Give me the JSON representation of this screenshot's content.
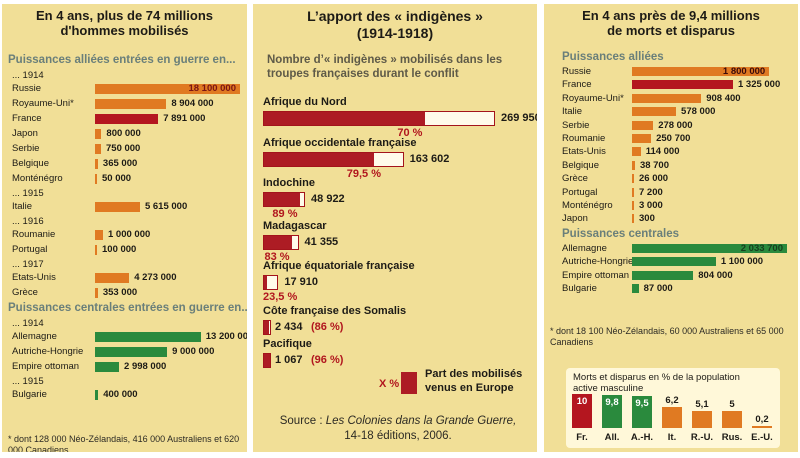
{
  "colors": {
    "panel_bg": "#f1df97",
    "orange": "#e07a22",
    "red": "#b4161f",
    "green": "#2a8a3d",
    "section_text": "#6a7f7a"
  },
  "panel1": {
    "title": [
      "En 4 ans, plus de 74 millions",
      "d'hommes mobilisés"
    ],
    "section_allied": "Puissances alliées entrées en guerre en...",
    "section_central": "Puissances centrales entrées en guerre en...",
    "footnote": "* dont 128 000 Néo-Zélandais, 416 000 Australiens et 620 000 Canadiens"
  },
  "panel2": {
    "title": [
      "L’apport des « indigènes »",
      "(1914-1918)"
    ],
    "subtitle": "Nombre d’« indigènes » mobilisés dans les troupes françaises durant le conflit",
    "legend_symbol": "X %",
    "legend_text": "Part des mobilisés venus en Europe",
    "source_prefix": "Source : ",
    "source_title": "Les Colonies dans la Grande Guerre,",
    "source_suffix": "14-18 éditions, 2006."
  },
  "panel3": {
    "title": [
      "En 4 ans près de 9,4 millions",
      "de morts et disparus"
    ],
    "section_allied": "Puissances alliées",
    "section_central": "Puissances centrales",
    "footnote": "* dont 18 100 Néo-Zélandais, 60 000 Australiens et 65 000 Canadiens",
    "inset_title": [
      "Morts et disparus en % de la population",
      "active masculine"
    ]
  },
  "chart_data": [
    {
      "type": "bar",
      "orientation": "horizontal",
      "title": "En 4 ans, plus de 74 millions d'hommes mobilisés",
      "groups": [
        {
          "label": "Puissances alliées entrées en guerre en...",
          "year": "... 1914",
          "color": "#e07a22",
          "items": [
            {
              "name": "Russie",
              "value": 18100000,
              "label": "18 100 000"
            },
            {
              "name": "Royaume-Uni*",
              "value": 8904000,
              "label": "8 904 000"
            },
            {
              "name": "France",
              "value": 7891000,
              "label": "7 891 000",
              "color": "#b4161f"
            },
            {
              "name": "Japon",
              "value": 800000,
              "label": "800 000"
            },
            {
              "name": "Serbie",
              "value": 750000,
              "label": "750 000"
            },
            {
              "name": "Belgique",
              "value": 365000,
              "label": "365 000"
            },
            {
              "name": "Monténégro",
              "value": 50000,
              "label": "50 000"
            }
          ]
        },
        {
          "year": "... 1915",
          "color": "#e07a22",
          "items": [
            {
              "name": "Italie",
              "value": 5615000,
              "label": "5 615 000"
            }
          ]
        },
        {
          "year": "... 1916",
          "color": "#e07a22",
          "items": [
            {
              "name": "Roumanie",
              "value": 1000000,
              "label": "1 000 000"
            },
            {
              "name": "Portugal",
              "value": 100000,
              "label": "100 000"
            }
          ]
        },
        {
          "year": "... 1917",
          "color": "#e07a22",
          "items": [
            {
              "name": "Etats-Unis",
              "value": 4273000,
              "label": "4 273 000"
            },
            {
              "name": "Grèce",
              "value": 353000,
              "label": "353 000"
            }
          ]
        },
        {
          "label": "Puissances centrales entrées en guerre en...",
          "year": "... 1914",
          "color": "#2a8a3d",
          "items": [
            {
              "name": "Allemagne",
              "value": 13200000,
              "label": "13 200 000"
            },
            {
              "name": "Autriche-Hongrie",
              "value": 9000000,
              "label": "9 000 000"
            },
            {
              "name": "Empire ottoman",
              "value": 2998000,
              "label": "2 998 000"
            }
          ]
        },
        {
          "year": "... 1915",
          "color": "#2a8a3d",
          "items": [
            {
              "name": "Bulgarie",
              "value": 400000,
              "label": "400 000"
            }
          ]
        }
      ]
    },
    {
      "type": "bar",
      "orientation": "horizontal",
      "title": "L’apport des « indigènes » (1914-1918)",
      "subtitle": "Nombre d’« indigènes » mobilisés dans les troupes françaises durant le conflit",
      "series": [
        {
          "name": "Nombre d’« indigènes » mobilisés",
          "values": [
            269950,
            163602,
            48922,
            41355,
            17910,
            2434,
            1067
          ]
        },
        {
          "name": "Part des mobilisés venus en Europe",
          "values": [
            70,
            79.5,
            89,
            83,
            23.5,
            86,
            96
          ],
          "unit": "%"
        }
      ],
      "categories": [
        "Afrique du Nord",
        "Afrique occidentale française",
        "Indochine",
        "Madagascar",
        "Afrique équatoriale française",
        "Côte française des Somalis",
        "Pacifique"
      ],
      "value_labels": [
        "269 950",
        "163 602",
        "48 922",
        "41 355",
        "17 910",
        "2 434",
        "1 067"
      ],
      "pct_labels": [
        "70 %",
        "79,5 %",
        "89 %",
        "83 %",
        "23,5 %",
        "(86 %)",
        "(96 %)"
      ]
    },
    {
      "type": "bar",
      "orientation": "horizontal",
      "title": "En 4 ans près de 9,4 millions de morts et disparus",
      "groups": [
        {
          "label": "Puissances alliées",
          "color": "#e07a22",
          "items": [
            {
              "name": "Russie",
              "value": 1800000,
              "label": "1 800 000"
            },
            {
              "name": "France",
              "value": 1325000,
              "label": "1 325 000",
              "color": "#b4161f"
            },
            {
              "name": "Royaume-Uni*",
              "value": 908400,
              "label": "908 400"
            },
            {
              "name": "Italie",
              "value": 578000,
              "label": "578 000"
            },
            {
              "name": "Serbie",
              "value": 278000,
              "label": "278 000"
            },
            {
              "name": "Roumanie",
              "value": 250700,
              "label": "250 700"
            },
            {
              "name": "Etats-Unis",
              "value": 114000,
              "label": "114 000"
            },
            {
              "name": "Belgique",
              "value": 38700,
              "label": "38 700"
            },
            {
              "name": "Grèce",
              "value": 26000,
              "label": "26 000"
            },
            {
              "name": "Portugal",
              "value": 7200,
              "label": "7 200"
            },
            {
              "name": "Monténégro",
              "value": 3000,
              "label": "3 000"
            },
            {
              "name": "Japon",
              "value": 300,
              "label": "300"
            }
          ]
        },
        {
          "label": "Puissances centrales",
          "color": "#2a8a3d",
          "items": [
            {
              "name": "Allemagne",
              "value": 2033700,
              "label": "2 033 700"
            },
            {
              "name": "Autriche-Hongrie",
              "value": 1100000,
              "label": "1 100 000"
            },
            {
              "name": "Empire ottoman",
              "value": 804000,
              "label": "804 000"
            },
            {
              "name": "Bulgarie",
              "value": 87000,
              "label": "87 000"
            }
          ]
        }
      ]
    },
    {
      "type": "bar",
      "orientation": "vertical",
      "title": "Morts et disparus en % de la population active masculine",
      "categories": [
        "Fr.",
        "All.",
        "A.-H.",
        "It.",
        "R.-U.",
        "Rus.",
        "E.-U."
      ],
      "values": [
        10,
        9.8,
        9.5,
        6.2,
        5.1,
        5,
        0.2
      ],
      "value_labels": [
        "10",
        "9,8",
        "9,5",
        "6,2",
        "5,1",
        "5",
        "0,2"
      ],
      "colors": [
        "#b4161f",
        "#2a8a3d",
        "#2a8a3d",
        "#e07a22",
        "#e07a22",
        "#e07a22",
        "#e07a22"
      ]
    }
  ]
}
